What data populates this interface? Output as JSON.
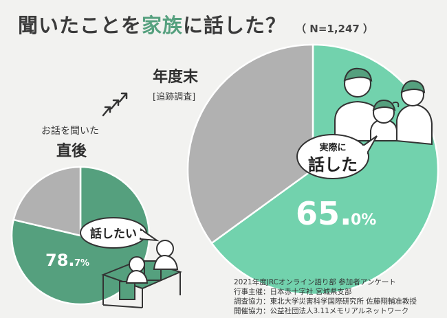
{
  "title": {
    "part1": "聞いたことを",
    "highlight": "家族",
    "part2": "に話した？",
    "sample": "（ N=1,247 ）"
  },
  "labels": {
    "after_small": "お話を聞いた",
    "after_big": "直後",
    "year_big": "年度末",
    "year_small": "[追跡調査]"
  },
  "callouts": {
    "want_to_talk": "話したい",
    "actually_small": "実際に",
    "actually_big": "話した"
  },
  "credits": [
    "2021年度JRCオンライン語り部 参加者アンケート",
    "行事主催：日本赤十字社 宮城県支部",
    "調査協力：東北大学災害科学国際研究所 佐藤翔輔准教授",
    "開催協力：公益社団法人3.11メモリアルネットワーク"
  ],
  "colors": {
    "small_pie_main": "#55a07e",
    "big_pie_main": "#72d2ad",
    "pie_rest": "#b1b1b1",
    "background": "#f2f2f0",
    "title_highlight": "#55a07e"
  },
  "chart_data": [
    {
      "type": "pie",
      "title": "直後",
      "slices": [
        {
          "label": "話したい",
          "value": 78.7,
          "value_label_main": "78.",
          "value_label_decimal": "7%"
        },
        {
          "label": "",
          "value": 21.3
        }
      ]
    },
    {
      "type": "pie",
      "title": "年度末",
      "slices": [
        {
          "label": "話した",
          "value": 65.0,
          "value_label_main": "65.",
          "value_label_decimal": "0%"
        },
        {
          "label": "",
          "value": 35.0
        }
      ]
    }
  ]
}
